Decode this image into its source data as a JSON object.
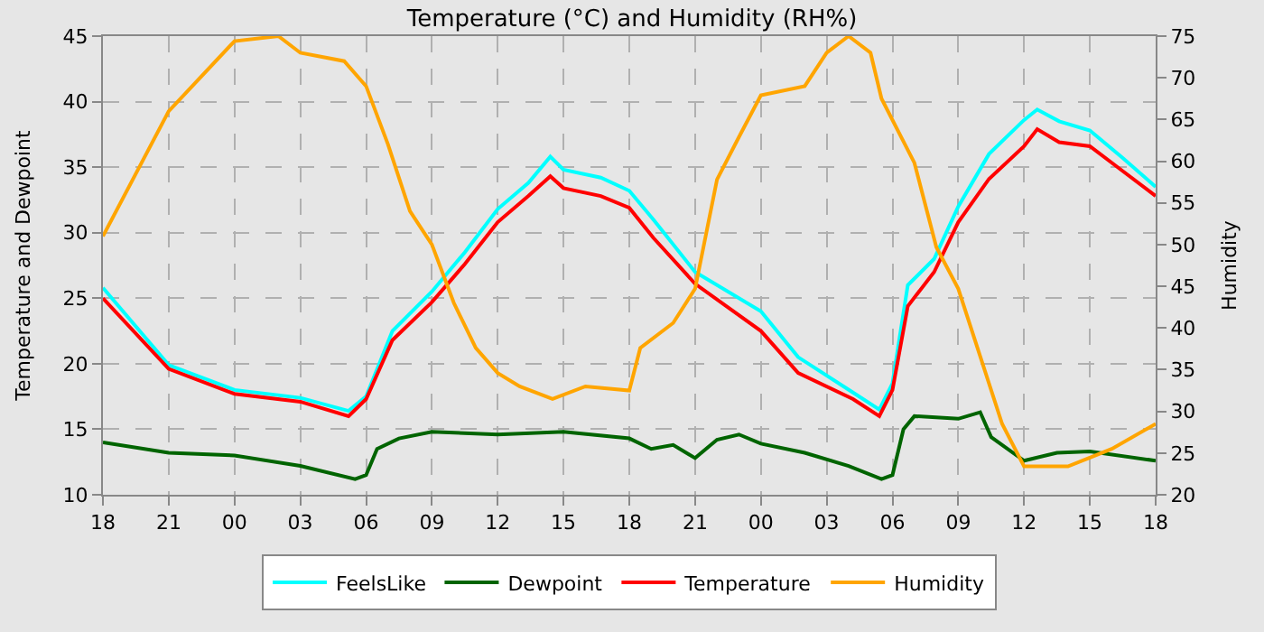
{
  "chart_data": {
    "type": "line",
    "title": "Temperature (°C) and Humidity (RH%)",
    "ylabel": "Temperature and Dewpoint",
    "y2label": "Humidity",
    "xlim": [
      18,
      66
    ],
    "xticks": [
      {
        "value": 18,
        "label": "18"
      },
      {
        "value": 21,
        "label": "21"
      },
      {
        "value": 24,
        "label": "00"
      },
      {
        "value": 27,
        "label": "03"
      },
      {
        "value": 30,
        "label": "06"
      },
      {
        "value": 33,
        "label": "09"
      },
      {
        "value": 36,
        "label": "12"
      },
      {
        "value": 39,
        "label": "15"
      },
      {
        "value": 42,
        "label": "18"
      },
      {
        "value": 45,
        "label": "21"
      },
      {
        "value": 48,
        "label": "00"
      },
      {
        "value": 51,
        "label": "03"
      },
      {
        "value": 54,
        "label": "06"
      },
      {
        "value": 57,
        "label": "09"
      },
      {
        "value": 60,
        "label": "12"
      },
      {
        "value": 63,
        "label": "15"
      },
      {
        "value": 66,
        "label": "18"
      }
    ],
    "ylim": [
      10,
      45
    ],
    "yticks": [
      10,
      15,
      20,
      25,
      30,
      35,
      40,
      45
    ],
    "y2lim": [
      20,
      75
    ],
    "y2ticks": [
      20,
      25,
      30,
      35,
      40,
      45,
      50,
      55,
      60,
      65,
      70,
      75
    ],
    "grid": true,
    "legend": "bottom",
    "line_style": "solid",
    "series": [
      {
        "name": "FeelsLike",
        "color": "#00ffff",
        "x": [
          18,
          21,
          24,
          27,
          29.2,
          30,
          31.2,
          33,
          34.5,
          36,
          37.4,
          38.4,
          39,
          40.7,
          42,
          43.1,
          45,
          48,
          49.7,
          52.2,
          53.4,
          54,
          54.7,
          55.9,
          57,
          58.4,
          60,
          60.6,
          61.6,
          63,
          64.5,
          66
        ],
        "values": [
          25.8,
          19.9,
          18,
          17.4,
          16.4,
          17.5,
          22.5,
          25.5,
          28.5,
          31.8,
          33.8,
          35.8,
          34.8,
          34.2,
          33.2,
          31,
          27,
          24,
          20.5,
          17.8,
          16.5,
          18.5,
          26,
          28,
          32,
          36,
          38.6,
          39.4,
          38.5,
          37.8,
          35.7,
          33.5
        ]
      },
      {
        "name": "Dewpoint",
        "color": "#006400",
        "x": [
          18,
          21,
          24,
          27,
          29.5,
          30,
          30.5,
          31.5,
          33,
          36,
          39,
          42,
          43,
          44,
          45,
          46,
          47,
          48,
          50,
          52,
          53.5,
          54,
          54.5,
          55,
          57,
          58,
          58.5,
          60,
          61.5,
          63,
          66
        ],
        "values": [
          14,
          13.2,
          13,
          12.2,
          11.2,
          11.5,
          13.5,
          14.3,
          14.8,
          14.6,
          14.8,
          14.3,
          13.5,
          13.8,
          12.8,
          14.2,
          14.6,
          13.9,
          13.2,
          12.2,
          11.2,
          11.5,
          15,
          16,
          15.8,
          16.3,
          14.4,
          12.6,
          13.2,
          13.3,
          12.6
        ]
      },
      {
        "name": "Temperature",
        "color": "#ff0000",
        "x": [
          18,
          21,
          24,
          27,
          29.2,
          30,
          31.2,
          33,
          34.5,
          36,
          37.4,
          38.4,
          39,
          40.7,
          42,
          43.1,
          45,
          48,
          49.7,
          52.2,
          53.4,
          54,
          54.7,
          55.9,
          57,
          58.4,
          60,
          60.6,
          61.6,
          63,
          64.5,
          66
        ],
        "values": [
          25,
          19.6,
          17.7,
          17.1,
          16,
          17.3,
          21.8,
          24.7,
          27.6,
          30.8,
          32.8,
          34.3,
          33.4,
          32.8,
          31.9,
          29.6,
          26.1,
          22.5,
          19.3,
          17.3,
          16,
          18,
          24.4,
          27,
          30.8,
          34.1,
          36.6,
          37.9,
          36.9,
          36.6,
          34.7,
          32.8
        ]
      },
      {
        "name": "Humidity",
        "color": "#ffa500",
        "axis": "y2",
        "x": [
          18,
          21,
          24,
          26,
          27,
          29,
          30,
          31,
          32,
          33,
          34,
          35,
          36,
          37,
          38.5,
          40,
          42,
          42.5,
          44,
          45,
          46,
          47,
          48,
          50,
          51,
          52,
          53,
          53.5,
          55,
          56,
          57,
          58,
          59,
          60,
          62,
          64,
          66
        ],
        "values": [
          51,
          66,
          74.4,
          75,
          73,
          72,
          69,
          62,
          54,
          50,
          43,
          37.6,
          34.6,
          33,
          31.5,
          33,
          32.5,
          37.6,
          40.6,
          44.7,
          57.8,
          62.9,
          67.9,
          69,
          73,
          75,
          73,
          67.5,
          59.8,
          49.7,
          44.7,
          36.6,
          28.5,
          23.4,
          23.4,
          25.5,
          28.5
        ]
      }
    ]
  }
}
